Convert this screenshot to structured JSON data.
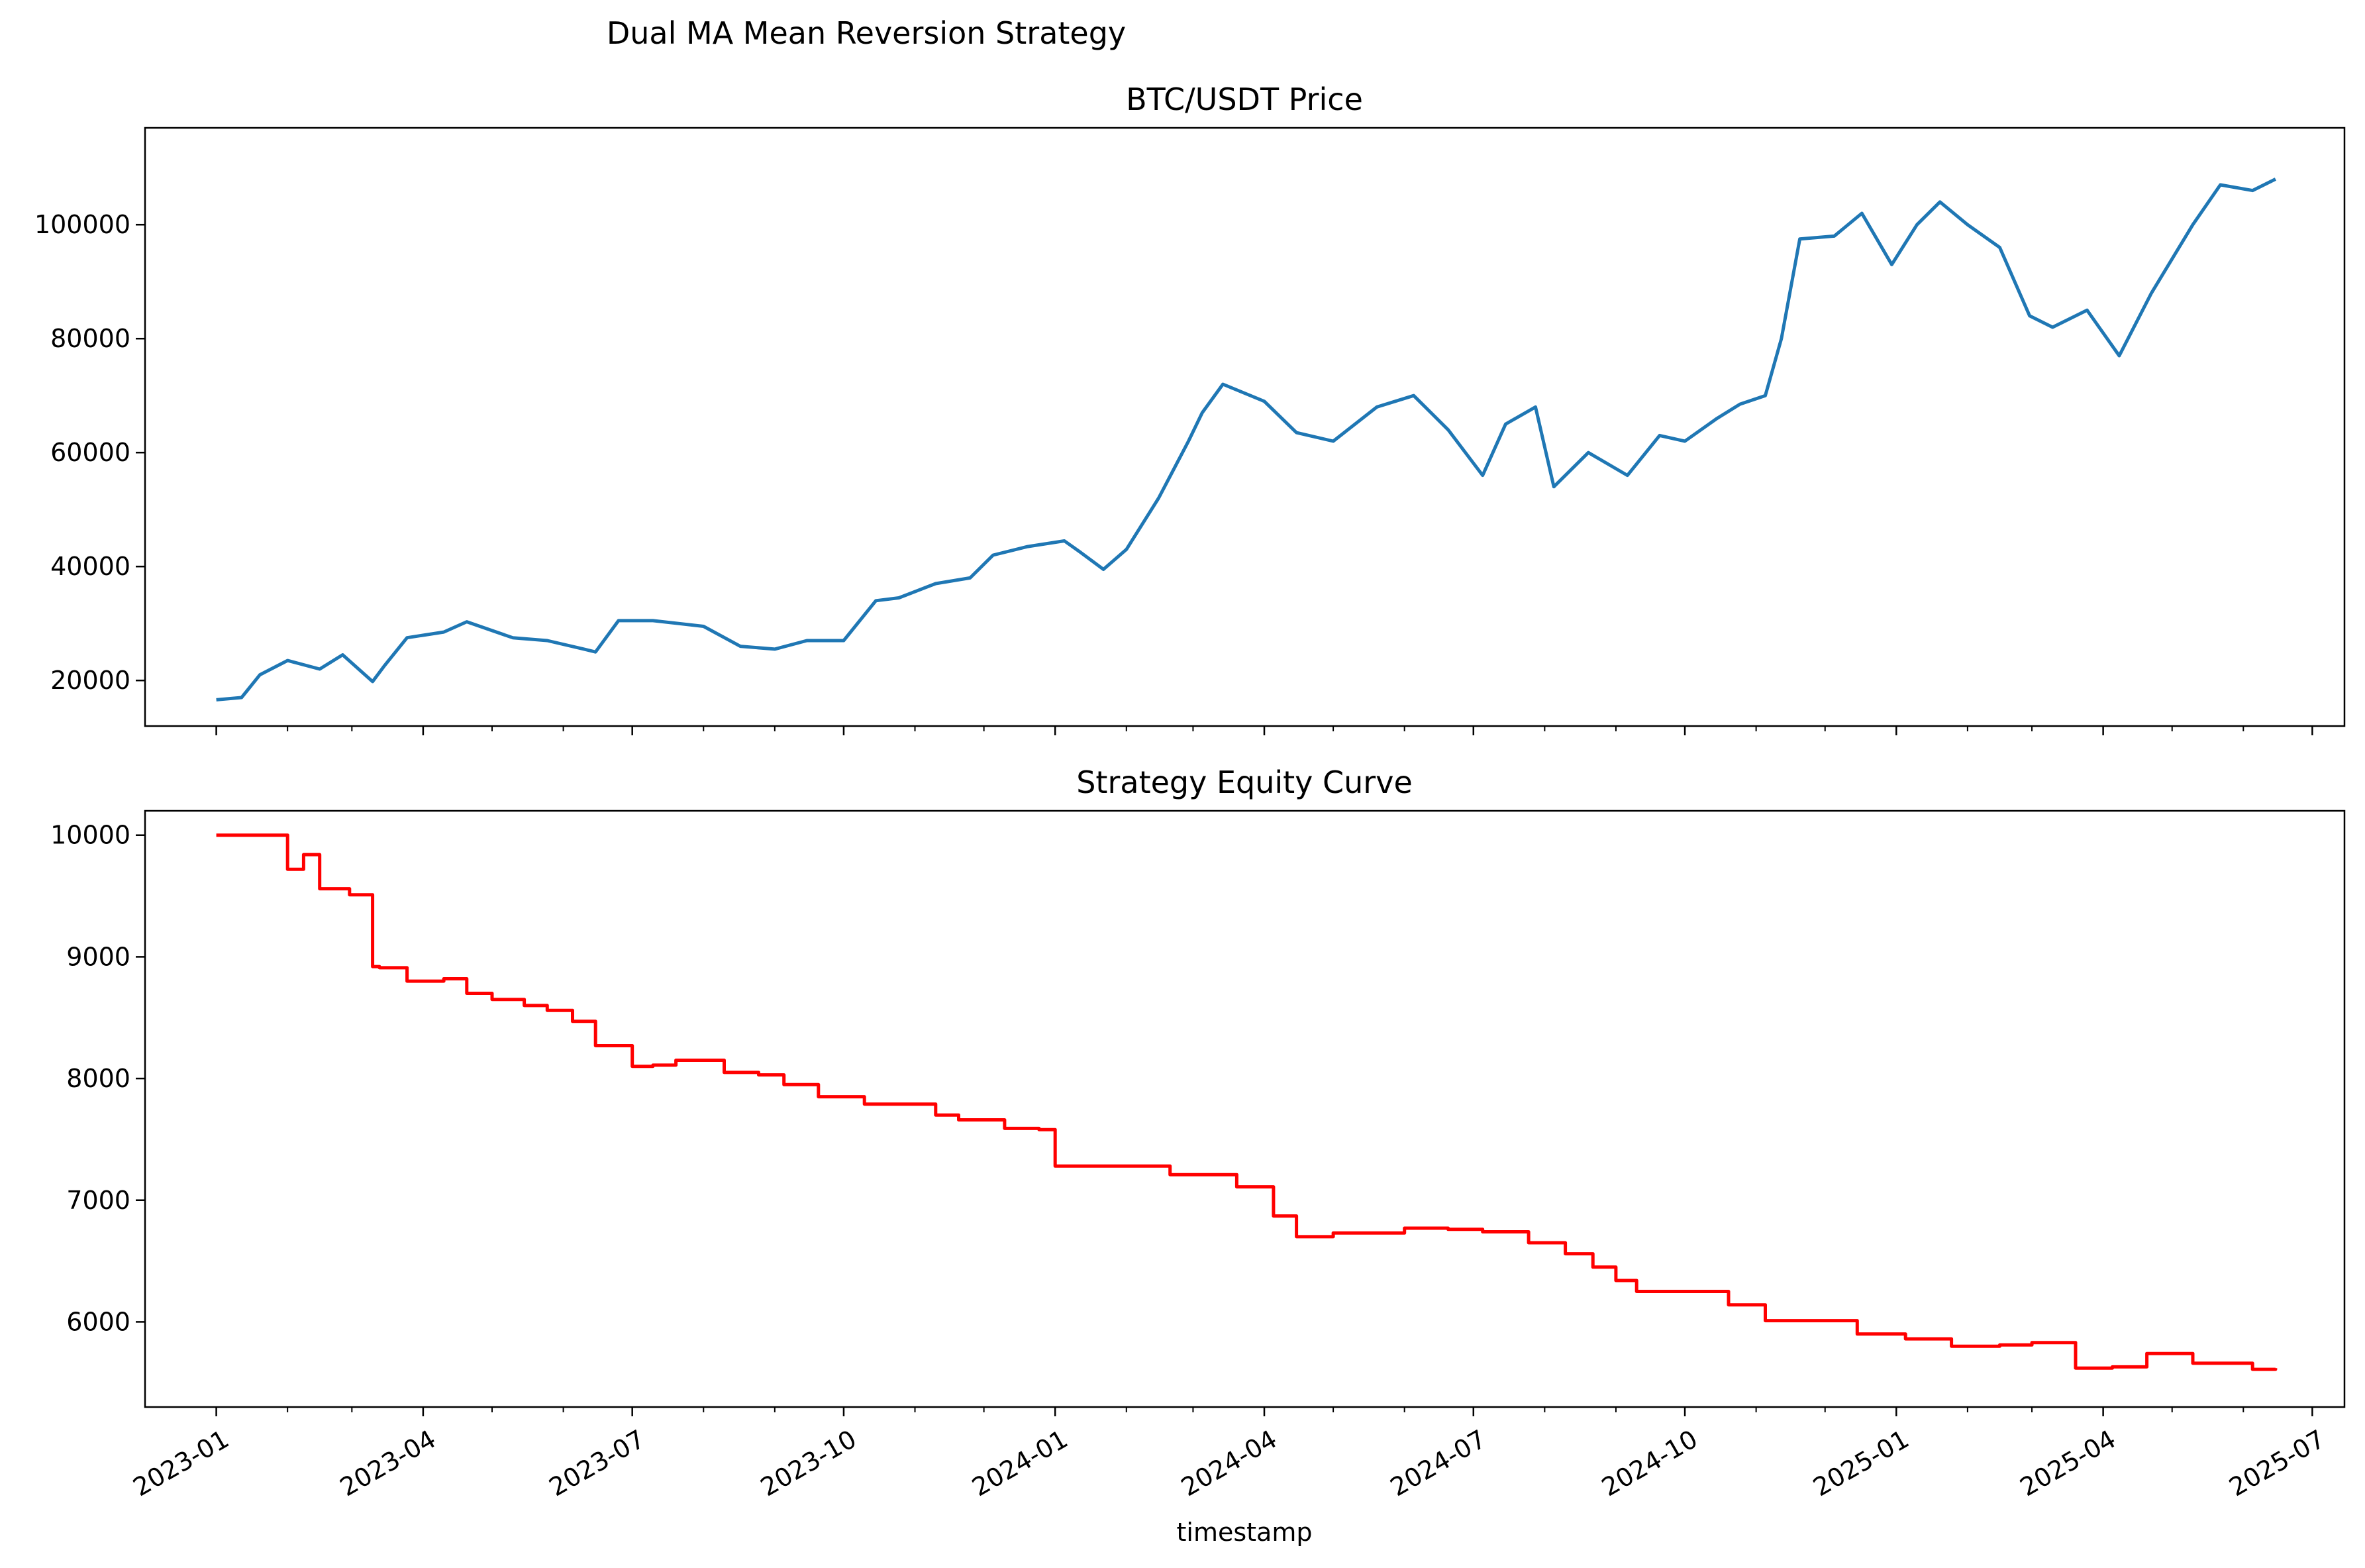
{
  "figure": {
    "suptitle": "Dual MA Mean Reversion Strategy",
    "xlabel": "timestamp"
  },
  "chart_data": [
    {
      "type": "line",
      "title": "BTC/USDT Price",
      "xlabel": "",
      "ylabel": "",
      "ylim": [
        12000,
        117000
      ],
      "yticks": [
        "20000",
        "40000",
        "60000",
        "80000",
        "100000"
      ],
      "xticks": [
        "2023-01",
        "2023-04",
        "2023-07",
        "2023-10",
        "2024-01",
        "2024-04",
        "2024-07",
        "2024-10",
        "2025-01",
        "2025-04",
        "2025-07"
      ],
      "x_tick_labels_visible": false,
      "grid": false,
      "colors": {
        "line": "#1f77b4"
      },
      "series": [
        {
          "x": [
            "2023-01-01",
            "2023-01-12",
            "2023-01-20",
            "2023-02-01",
            "2023-02-15",
            "2023-02-25",
            "2023-03-10",
            "2023-03-15",
            "2023-03-25",
            "2023-04-10",
            "2023-04-20",
            "2023-05-10",
            "2023-05-25",
            "2023-06-10",
            "2023-06-15",
            "2023-06-25",
            "2023-07-10",
            "2023-08-01",
            "2023-08-17",
            "2023-09-01",
            "2023-09-15",
            "2023-10-01",
            "2023-10-15",
            "2023-10-25",
            "2023-11-10",
            "2023-11-25",
            "2023-12-05",
            "2023-12-20",
            "2024-01-05",
            "2024-01-12",
            "2024-01-22",
            "2024-02-01",
            "2024-02-15",
            "2024-02-28",
            "2024-03-05",
            "2024-03-14",
            "2024-04-01",
            "2024-04-15",
            "2024-05-01",
            "2024-05-20",
            "2024-06-05",
            "2024-06-20",
            "2024-07-05",
            "2024-07-15",
            "2024-07-28",
            "2024-08-05",
            "2024-08-20",
            "2024-09-06",
            "2024-09-20",
            "2024-10-01",
            "2024-10-15",
            "2024-10-25",
            "2024-11-05",
            "2024-11-12",
            "2024-11-20",
            "2024-12-05",
            "2024-12-17",
            "2024-12-30",
            "2025-01-10",
            "2025-01-20",
            "2025-02-01",
            "2025-02-15",
            "2025-02-28",
            "2025-03-10",
            "2025-03-25",
            "2025-04-08",
            "2025-04-22",
            "2025-05-10",
            "2025-05-22",
            "2025-06-05",
            "2025-06-15"
          ],
          "y": [
            16600,
            17000,
            21000,
            23500,
            22000,
            24500,
            19800,
            22500,
            27500,
            28500,
            30300,
            27500,
            27000,
            25500,
            25000,
            30500,
            30500,
            29500,
            26000,
            25500,
            27000,
            27000,
            34000,
            34500,
            37000,
            38000,
            42000,
            43500,
            44500,
            42500,
            39500,
            43000,
            52000,
            62000,
            67000,
            72000,
            69000,
            63500,
            62000,
            68000,
            70000,
            64000,
            56000,
            65000,
            68000,
            54000,
            60000,
            56000,
            63000,
            62000,
            66000,
            68500,
            70000,
            80000,
            97500,
            98000,
            102000,
            93000,
            100000,
            104000,
            100000,
            96000,
            84000,
            82000,
            85000,
            77000,
            88000,
            100000,
            107000,
            106000,
            108000
          ]
        }
      ]
    },
    {
      "type": "line",
      "title": "Strategy Equity Curve",
      "xlabel": "timestamp",
      "ylabel": "",
      "ylim": [
        5300,
        10200
      ],
      "yticks": [
        "6000",
        "7000",
        "8000",
        "9000",
        "10000"
      ],
      "xticks": [
        "2023-01",
        "2023-04",
        "2023-07",
        "2023-10",
        "2024-01",
        "2024-04",
        "2024-07",
        "2024-10",
        "2025-01",
        "2025-04",
        "2025-07"
      ],
      "grid": false,
      "colors": {
        "line": "#ff0000"
      },
      "series": [
        {
          "step": "post",
          "x": [
            "2023-01-01",
            "2023-02-01",
            "2023-02-08",
            "2023-02-15",
            "2023-02-28",
            "2023-03-10",
            "2023-03-13",
            "2023-03-25",
            "2023-04-10",
            "2023-04-20",
            "2023-05-01",
            "2023-05-15",
            "2023-05-25",
            "2023-06-05",
            "2023-06-15",
            "2023-07-01",
            "2023-07-10",
            "2023-07-20",
            "2023-08-10",
            "2023-08-25",
            "2023-09-05",
            "2023-09-20",
            "2023-10-10",
            "2023-11-10",
            "2023-11-20",
            "2023-12-10",
            "2023-12-25",
            "2024-01-01",
            "2024-02-20",
            "2024-03-20",
            "2024-04-05",
            "2024-04-15",
            "2024-05-01",
            "2024-06-01",
            "2024-06-20",
            "2024-07-05",
            "2024-07-25",
            "2024-08-10",
            "2024-08-22",
            "2024-09-01",
            "2024-09-10",
            "2024-10-05",
            "2024-10-20",
            "2024-11-05",
            "2024-11-25",
            "2024-12-15",
            "2025-01-05",
            "2025-01-25",
            "2025-02-15",
            "2025-03-01",
            "2025-03-20",
            "2025-04-05",
            "2025-04-20",
            "2025-05-10",
            "2025-05-25",
            "2025-06-05",
            "2025-06-15"
          ],
          "y": [
            10000,
            9720,
            9840,
            9560,
            9510,
            8920,
            8910,
            8800,
            8820,
            8700,
            8650,
            8600,
            8560,
            8470,
            8270,
            8100,
            8110,
            8150,
            8050,
            8030,
            7950,
            7850,
            7790,
            7700,
            7660,
            7590,
            7580,
            7280,
            7210,
            7110,
            6870,
            6700,
            6730,
            6770,
            6760,
            6740,
            6650,
            6560,
            6450,
            6340,
            6250,
            6250,
            6140,
            6010,
            6010,
            5900,
            5860,
            5800,
            5810,
            5830,
            5620,
            5630,
            5740,
            5660,
            5660,
            5610,
            5620
          ]
        }
      ]
    }
  ]
}
